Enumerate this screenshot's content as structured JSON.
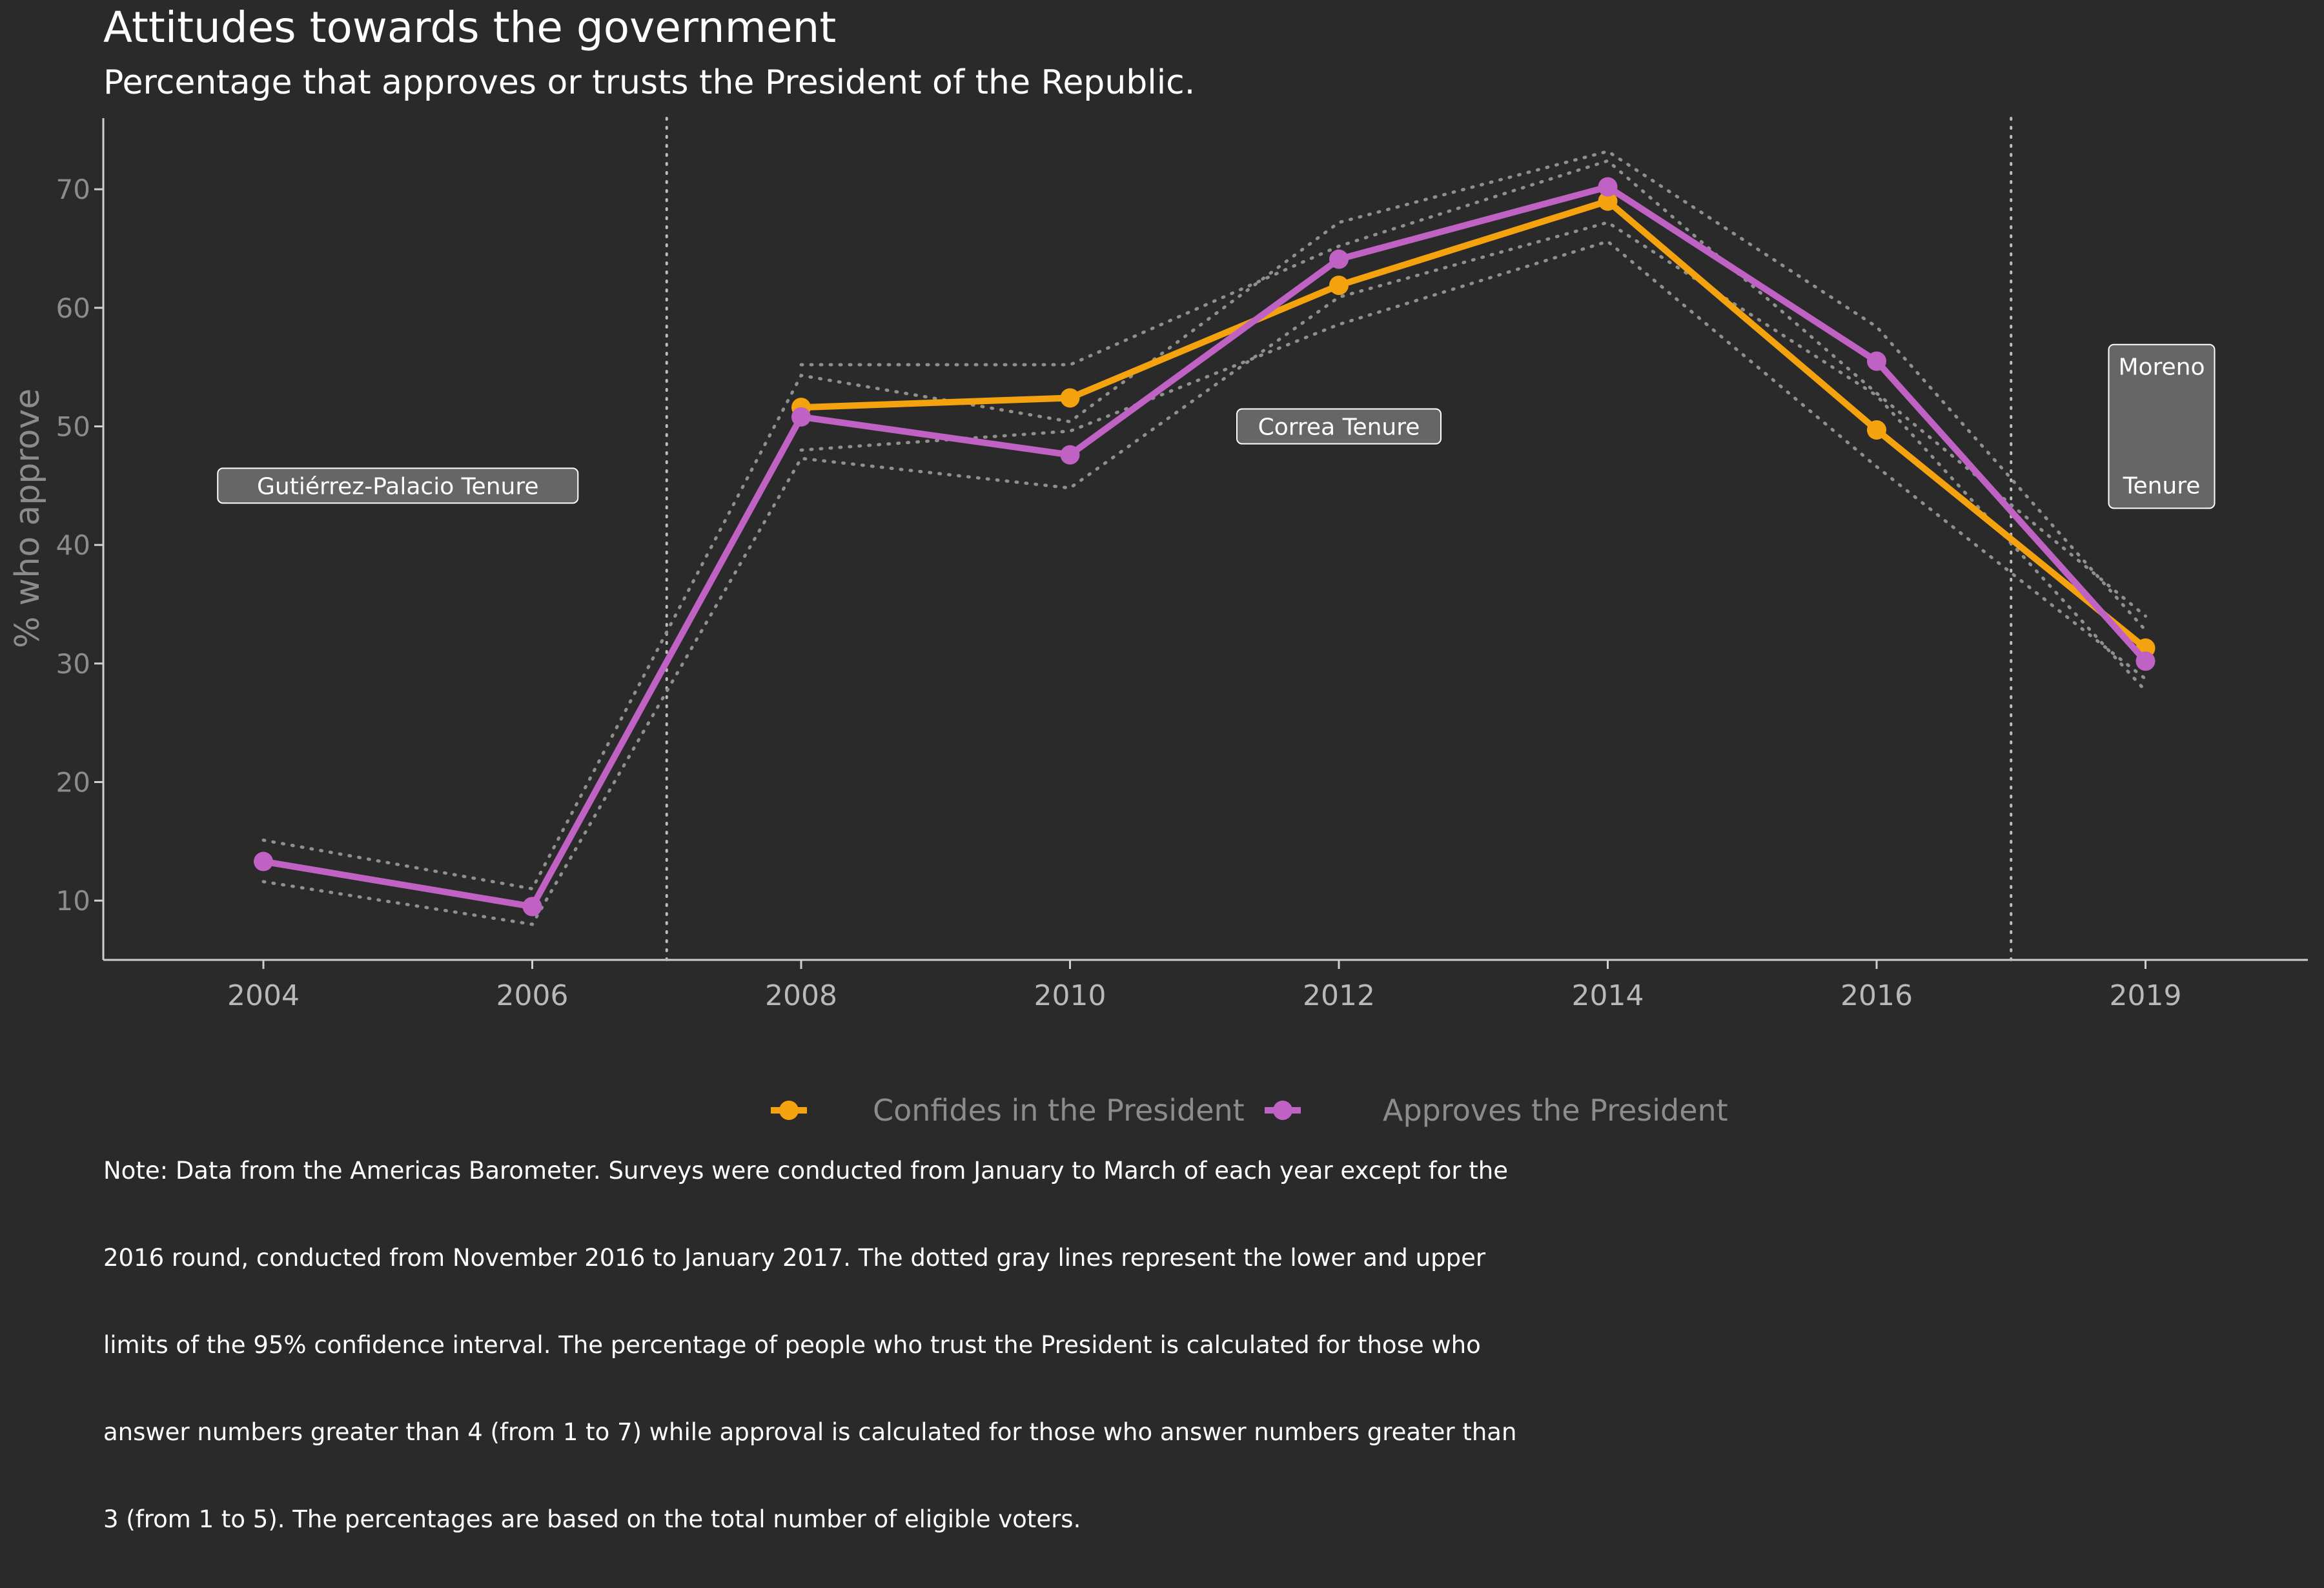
{
  "title": "Attitudes towards the government",
  "subtitle": "Percentage that approves or trusts the President of the Republic.",
  "chart_data": {
    "type": "line",
    "ylabel": "% who approve",
    "xlabel": "",
    "ylim": [
      5,
      76
    ],
    "yticks": [
      10,
      20,
      30,
      40,
      50,
      60,
      70
    ],
    "categories": [
      "2004",
      "2006",
      "2008",
      "2010",
      "2012",
      "2014",
      "2016",
      "2019"
    ],
    "grid": false,
    "legend": "bottom",
    "series": [
      {
        "name": "Confides in the President",
        "color": "#f5a20f",
        "values": [
          null,
          null,
          51.6,
          52.4,
          61.9,
          69.0,
          49.7,
          31.3
        ],
        "ci_low": [
          null,
          null,
          48.0,
          49.6,
          58.6,
          65.6,
          46.6,
          28.7
        ],
        "ci_high": [
          null,
          null,
          55.2,
          55.2,
          65.2,
          72.4,
          52.8,
          34.0
        ]
      },
      {
        "name": "Approves the President",
        "color": "#c062c4",
        "values": [
          13.3,
          9.5,
          50.8,
          47.6,
          64.1,
          70.2,
          55.5,
          30.2
        ],
        "ci_low": [
          11.6,
          8.0,
          47.3,
          44.8,
          60.9,
          67.2,
          52.6,
          27.7
        ],
        "ci_high": [
          15.1,
          11.0,
          54.3,
          50.4,
          67.2,
          73.2,
          58.4,
          32.8
        ]
      }
    ],
    "tenure_dividers": [
      {
        "between": [
          "2006",
          "2008"
        ]
      },
      {
        "between": [
          "2016",
          "2019"
        ]
      }
    ],
    "annotations": [
      {
        "text": "Gutiérrez-Palacio Tenure",
        "x_category": "2004",
        "x_offset": 0.5,
        "y": 45
      },
      {
        "text": "Correa Tenure",
        "x_category": "2012",
        "x_offset": 0,
        "y": 50
      },
      {
        "text_top": "Moreno",
        "text_bottom": "Tenure",
        "x_category": "2019",
        "x_offset": 0.06,
        "y_top": 55,
        "y_bottom": 45
      }
    ]
  },
  "note_lines": [
    "Note: Data from the Americas Barometer. Surveys were conducted from January to March of each year except for the",
    "2016 round, conducted from November 2016 to January 2017. The dotted gray lines represent the lower and upper",
    "limits of the 95% confidence interval. The percentage of people who trust the President is calculated for those who",
    "answer numbers greater than 4 (from 1 to 7) while approval is calculated for those who answer numbers greater than",
    "3 (from 1 to 5). The percentages are based on the total number of eligible voters."
  ]
}
